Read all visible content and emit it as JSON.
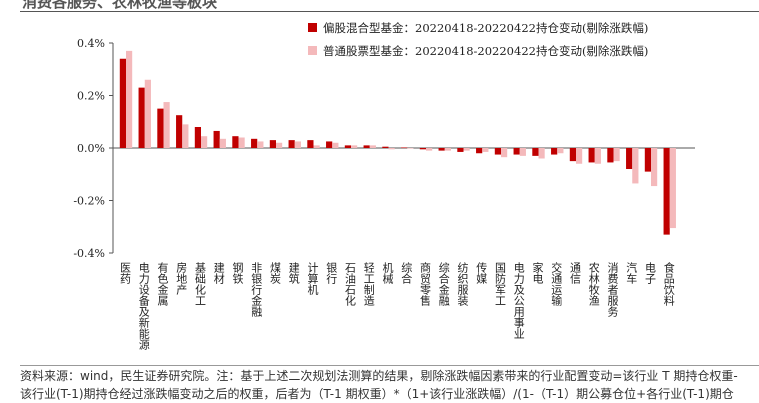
{
  "header": {
    "title": "消费各服务、农林牧渔等板块"
  },
  "chart_data": {
    "type": "bar",
    "categories": [
      "医药",
      "电力设备及新能源",
      "有色金属",
      "房地产",
      "基础化工",
      "建材",
      "钢铁",
      "非银行金融",
      "煤炭",
      "建筑",
      "计算机",
      "银行",
      "石油石化",
      "轻工制造",
      "机械",
      "综合",
      "商贸零售",
      "综合金融",
      "纺织服装",
      "传媒",
      "国防军工",
      "电力及公用事业",
      "家电",
      "交通运输",
      "通信",
      "农林牧渔",
      "消费者服务",
      "汽车",
      "电子",
      "食品饮料"
    ],
    "series": [
      {
        "name": "偏股混合型基金：20220418-20220422持仓变动(剔除涨跌幅)",
        "color": "#c00000",
        "values": [
          0.34,
          0.23,
          0.15,
          0.125,
          0.08,
          0.065,
          0.045,
          0.035,
          0.03,
          0.03,
          0.03,
          0.025,
          0.01,
          0.01,
          0.005,
          0.002,
          -0.005,
          -0.01,
          -0.015,
          -0.02,
          -0.025,
          -0.025,
          -0.03,
          -0.025,
          -0.05,
          -0.055,
          -0.055,
          -0.08,
          -0.09,
          -0.33
        ]
      },
      {
        "name": "普通股票型基金：20220418-20220422持仓变动(剔除涨跌幅)",
        "color": "#f4b9bb",
        "values": [
          0.37,
          0.26,
          0.175,
          0.09,
          0.045,
          0.035,
          0.04,
          0.025,
          0.02,
          0.025,
          0.01,
          0.02,
          0.01,
          0.01,
          -0.005,
          -0.002,
          -0.01,
          -0.01,
          -0.01,
          -0.015,
          -0.035,
          -0.03,
          -0.04,
          -0.02,
          -0.06,
          -0.06,
          -0.05,
          -0.135,
          -0.145,
          -0.305
        ]
      }
    ],
    "yticks": [
      "0.4%",
      "0.2%",
      "0.0%",
      "-0.2%",
      "-0.4%"
    ],
    "ylim": [
      -0.4,
      0.4
    ],
    "legend_position": "top-center",
    "grid": false
  },
  "footer": {
    "line1": "资料来源：wind，民生证券研究院。注：基于上述二次规划法测算的结果，剔除涨跌幅因素带来的行业配置变动=该行业 T 期持仓权重-",
    "line2": "该行业(T-1)期持仓经过涨跌幅变动之后的权重，后者为（T-1 期权重）*（1+该行业涨跌幅）/(1-（T-1）期公募仓位+各行业(T-1)期仓"
  }
}
